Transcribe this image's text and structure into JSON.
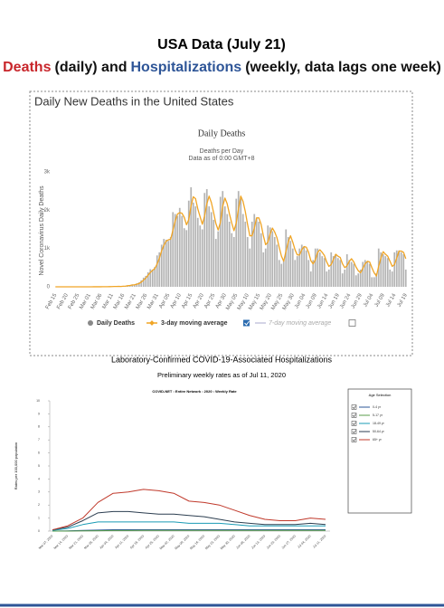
{
  "header": {
    "title": "USA Data (July 21)",
    "subtitle_parts": [
      {
        "text": "Deaths",
        "color": "#c8262b"
      },
      {
        "text": "(daily) and",
        "color": "#111111"
      },
      {
        "text": "Hospitalizations",
        "color": "#2e5597"
      },
      {
        "text": "(weekly, data lags one week)",
        "color": "#111111"
      }
    ]
  },
  "chart_data": [
    {
      "type": "bar",
      "frame_title": "Daily New Deaths in the United States",
      "title": "Daily Deaths",
      "subtitle": "Deaths per Day",
      "note": "Data as of 0:00 GMT+8",
      "ylabel": "Novel Coronavirus Daily Deaths",
      "legend": "bottom",
      "grid": false,
      "ylim": [
        0,
        3000
      ],
      "yticks": [
        0,
        {
          "value": 1000,
          "label": "1k"
        },
        {
          "value": 2000,
          "label": "2k"
        },
        {
          "value": 3000,
          "label": "3k"
        }
      ],
      "categories": [
        "Feb 15",
        null,
        null,
        null,
        null,
        "Feb 20",
        null,
        null,
        null,
        null,
        "Feb 25",
        null,
        null,
        null,
        null,
        "Mar 01",
        null,
        null,
        null,
        null,
        "Mar 06",
        null,
        null,
        null,
        null,
        "Mar 11",
        null,
        null,
        null,
        null,
        "Mar 16",
        null,
        null,
        null,
        null,
        "Mar 21",
        null,
        null,
        null,
        null,
        "Mar 26",
        null,
        null,
        null,
        null,
        "Mar 31",
        null,
        null,
        null,
        null,
        "Apr 05",
        null,
        null,
        null,
        null,
        "Apr 10",
        null,
        null,
        null,
        null,
        "Apr 15",
        null,
        null,
        null,
        null,
        "Apr 20",
        null,
        null,
        null,
        null,
        "Apr 25",
        null,
        null,
        null,
        null,
        "Apr 30",
        null,
        null,
        null,
        null,
        "May 05",
        null,
        null,
        null,
        null,
        "May 10",
        null,
        null,
        null,
        null,
        "May 15",
        null,
        null,
        null,
        null,
        "May 20",
        null,
        null,
        null,
        null,
        "May 25",
        null,
        null,
        null,
        null,
        "May 30",
        null,
        null,
        null,
        null,
        "Jun 04",
        null,
        null,
        null,
        null,
        "Jun 09",
        null,
        null,
        null,
        null,
        "Jun 14",
        null,
        null,
        null,
        null,
        "Jun 19",
        null,
        null,
        null,
        null,
        "Jun 24",
        null,
        null,
        null,
        null,
        "Jun 29",
        null,
        null,
        null,
        null,
        "Jul 04",
        null,
        null,
        null,
        null,
        "Jul 09",
        null,
        null,
        null,
        null,
        "Jul 14",
        null,
        null,
        null,
        null,
        "Jul 19"
      ],
      "series": [
        {
          "name": "Daily Deaths",
          "type": "bar",
          "color": "#b4b4b4",
          "values": [
            0,
            0,
            0,
            0,
            0,
            0,
            0,
            0,
            0,
            0,
            0,
            0,
            0,
            0,
            0,
            1,
            0,
            5,
            2,
            3,
            2,
            3,
            4,
            2,
            8,
            7,
            10,
            8,
            12,
            8,
            23,
            24,
            38,
            43,
            63,
            50,
            90,
            115,
            170,
            240,
            285,
            380,
            460,
            450,
            520,
            820,
            900,
            1100,
            1250,
            1230,
            1200,
            1300,
            1950,
            1900,
            1850,
            2060,
            1850,
            1530,
            1480,
            2250,
            2600,
            2200,
            2100,
            1800,
            1600,
            1500,
            2450,
            2550,
            2100,
            1950,
            1750,
            1250,
            1450,
            2350,
            2500,
            2100,
            1900,
            1700,
            1400,
            1300,
            2300,
            2500,
            2300,
            1900,
            1700,
            1300,
            1000,
            1700,
            1900,
            1800,
            1700,
            1400,
            900,
            1000,
            1600,
            1550,
            1450,
            1300,
            1100,
            700,
            600,
            700,
            1500,
            1300,
            1200,
            1000,
            700,
            800,
            1000,
            1100,
            1050,
            950,
            700,
            400,
            700,
            1000,
            1000,
            900,
            800,
            750,
            400,
            450,
            900,
            800,
            850,
            750,
            700,
            350,
            450,
            850,
            700,
            650,
            600,
            300,
            350,
            450,
            650,
            700,
            650,
            600,
            250,
            250,
            350,
            1000,
            900,
            850,
            800,
            750,
            450,
            400,
            900,
            950,
            950,
            900,
            850,
            450
          ]
        },
        {
          "name": "3-day moving average",
          "type": "line",
          "color": "#f0a526",
          "values": [
            0,
            0,
            0,
            0,
            0,
            0,
            0,
            0,
            0,
            0,
            0,
            0,
            0,
            0,
            0,
            0,
            0,
            2,
            2,
            3,
            2,
            3,
            3,
            3,
            5,
            6,
            8,
            8,
            10,
            9,
            14,
            18,
            28,
            35,
            48,
            52,
            68,
            85,
            125,
            175,
            232,
            302,
            375,
            430,
            477,
            597,
            747,
            940,
            1083,
            1193,
            1227,
            1243,
            1483,
            1717,
            1900,
            1937,
            1920,
            1813,
            1620,
            1753,
            2110,
            2350,
            2300,
            2033,
            1833,
            1633,
            1850,
            2167,
            2367,
            2200,
            1933,
            1650,
            1483,
            1683,
            2100,
            2317,
            2167,
            1900,
            1667,
            1467,
            1667,
            2033,
            2367,
            2233,
            1967,
            1633,
            1333,
            1333,
            1533,
            1800,
            1800,
            1633,
            1333,
            1100,
            1167,
            1383,
            1533,
            1433,
            1283,
            1033,
            800,
            667,
            933,
            1167,
            1333,
            1167,
            967,
            833,
            833,
            967,
            1050,
            1033,
            900,
            683,
            600,
            700,
            900,
            967,
            900,
            817,
            650,
            533,
            583,
            717,
            850,
            800,
            767,
            600,
            500,
            550,
            667,
            733,
            650,
            517,
            417,
            367,
            483,
            600,
            667,
            650,
            500,
            367,
            283,
            533,
            750,
            917,
            850,
            800,
            667,
            533,
            583,
            750,
            933,
            933,
            900,
            733
          ]
        }
      ],
      "inactive_legend": [
        "7-day moving average"
      ]
    },
    {
      "type": "line",
      "title": "Laboratory-Confirmed COVID-19-Associated Hospitalizations",
      "subtitle": "Preliminary weekly rates as of Jul 11, 2020",
      "note": "COVID-NET : Entire Network : 2020 : Weekly Rate",
      "ylabel": "Rates per 100,000 population",
      "legend": "right",
      "legend_title": "Age Selection",
      "grid": false,
      "ylim": [
        0,
        10
      ],
      "yticks": [
        0,
        1,
        2,
        3,
        4,
        5,
        6,
        7,
        8,
        9,
        10
      ],
      "categories": [
        "Mar 07, 2020",
        "Mar 14, 2020",
        "Mar 21, 2020",
        "Mar 28, 2020",
        "Apr 04, 2020",
        "Apr 11, 2020",
        "Apr 18, 2020",
        "Apr 25, 2020",
        "May 02, 2020",
        "May 09, 2020",
        "May 16, 2020",
        "May 23, 2020",
        "May 30, 2020",
        "Jun 06, 2020",
        "Jun 13, 2020",
        "Jun 20, 2020",
        "Jun 27, 2020",
        "Jul 04, 2020",
        "Jul 11, 2020"
      ],
      "series": [
        {
          "name": "0-4 yr",
          "color": "#2b5797",
          "values": [
            0,
            0.02,
            0.05,
            0.08,
            0.1,
            0.1,
            0.1,
            0.1,
            0.1,
            0.1,
            0.1,
            0.1,
            0.1,
            0.1,
            0.1,
            0.1,
            0.1,
            0.1,
            0.1
          ]
        },
        {
          "name": "5-17 yr",
          "color": "#5a9e4b",
          "values": [
            0,
            0,
            0.02,
            0.03,
            0.04,
            0.04,
            0.05,
            0.05,
            0.05,
            0.05,
            0.05,
            0.05,
            0.05,
            0.05,
            0.05,
            0.05,
            0.05,
            0.05,
            0.05
          ]
        },
        {
          "name": "18-49 yr",
          "color": "#1a9bb5",
          "values": [
            0.05,
            0.2,
            0.5,
            0.7,
            0.7,
            0.7,
            0.7,
            0.7,
            0.7,
            0.6,
            0.6,
            0.6,
            0.5,
            0.4,
            0.4,
            0.4,
            0.4,
            0.4,
            0.4
          ]
        },
        {
          "name": "50-64 yr",
          "color": "#2c3e50",
          "values": [
            0.1,
            0.3,
            0.8,
            1.4,
            1.5,
            1.5,
            1.4,
            1.3,
            1.3,
            1.2,
            1.1,
            0.9,
            0.7,
            0.6,
            0.5,
            0.5,
            0.5,
            0.6,
            0.5
          ]
        },
        {
          "name": "65+ yr",
          "color": "#c0392b",
          "values": [
            0.1,
            0.4,
            1.0,
            2.2,
            2.9,
            3.0,
            3.2,
            3.1,
            2.9,
            2.3,
            2.2,
            2.0,
            1.6,
            1.2,
            0.9,
            0.8,
            0.8,
            1.0,
            0.9
          ]
        }
      ]
    }
  ]
}
